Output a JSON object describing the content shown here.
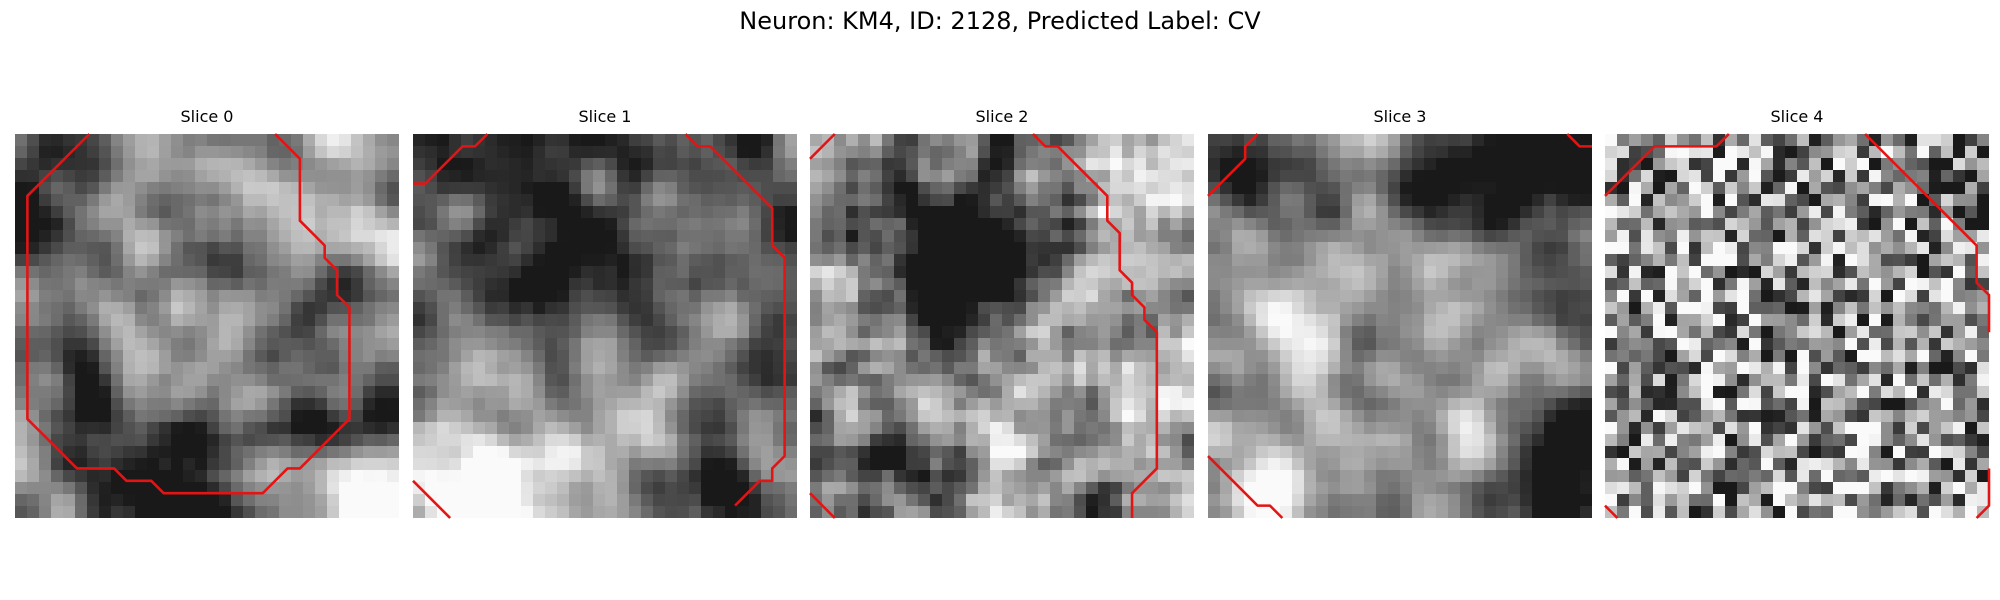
{
  "figure": {
    "title": "Neuron: KM4, ID: 2128, Predicted Label: CV",
    "contour_color": "#e41414",
    "colormap": "gray",
    "grid_size": 32
  },
  "slices": [
    {
      "title": "Slice 0",
      "texture": {
        "seed": 11,
        "contrast": 1.0,
        "smooth": 2,
        "blobs": [
          [
            2,
            2,
            3.5,
            -0.7
          ],
          [
            3,
            24,
            4,
            -0.3
          ],
          [
            14,
            28,
            5,
            -0.75
          ],
          [
            28,
            22,
            4,
            -0.55
          ],
          [
            29,
            31,
            3,
            0.8
          ],
          [
            31,
            1,
            3,
            0.4
          ],
          [
            18,
            17,
            7,
            0.22
          ],
          [
            22,
            12,
            4,
            -0.25
          ]
        ]
      },
      "contours": [
        [
          [
            6,
            0
          ],
          [
            1,
            5
          ],
          [
            1,
            23
          ],
          [
            3,
            25
          ],
          [
            5,
            27
          ],
          [
            8,
            27
          ],
          [
            9,
            28
          ],
          [
            11,
            28
          ],
          [
            12,
            29
          ],
          [
            20,
            29
          ],
          [
            22,
            27
          ],
          [
            23,
            27
          ],
          [
            25,
            25
          ],
          [
            27,
            23
          ],
          [
            27,
            14
          ],
          [
            26,
            13
          ],
          [
            26,
            11
          ],
          [
            25,
            10
          ],
          [
            25,
            9
          ],
          [
            24,
            8
          ],
          [
            23,
            7
          ],
          [
            23,
            2
          ],
          [
            22,
            1
          ],
          [
            21,
            0
          ]
        ]
      ]
    },
    {
      "title": "Slice 1",
      "texture": {
        "seed": 27,
        "contrast": 1.0,
        "smooth": 2,
        "blobs": [
          [
            16,
            6,
            12,
            -0.35
          ],
          [
            8,
            12,
            5,
            -0.35
          ],
          [
            20,
            12,
            5,
            -0.2
          ],
          [
            10,
            20,
            9,
            0.35
          ],
          [
            24,
            5,
            4,
            0.3
          ],
          [
            5,
            30,
            3,
            0.7
          ],
          [
            27,
            29,
            4,
            -0.5
          ]
        ]
      },
      "contours": [
        [
          [
            6,
            0
          ],
          [
            5,
            1
          ],
          [
            4,
            1
          ],
          [
            3,
            2
          ],
          [
            2,
            3
          ],
          [
            1,
            4
          ],
          [
            0,
            4
          ]
        ],
        [
          [
            22,
            0
          ],
          [
            23,
            1
          ],
          [
            24,
            1
          ],
          [
            28,
            5
          ],
          [
            29,
            6
          ],
          [
            29,
            9
          ],
          [
            30,
            10
          ],
          [
            30,
            26
          ],
          [
            29,
            27
          ],
          [
            29,
            28
          ],
          [
            28,
            28
          ],
          [
            27,
            29
          ],
          [
            26,
            30
          ]
        ],
        [
          [
            0,
            28
          ],
          [
            3,
            31
          ]
        ]
      ]
    },
    {
      "title": "Slice 2",
      "texture": {
        "seed": 41,
        "contrast": 1.0,
        "smooth": 1,
        "blobs": [
          [
            13,
            10,
            3,
            -0.95
          ],
          [
            12,
            11,
            5,
            -0.45
          ],
          [
            8,
            6,
            5,
            -0.2
          ],
          [
            16,
            20,
            8,
            0.2
          ],
          [
            27,
            2,
            3,
            0.5
          ],
          [
            6,
            27,
            4,
            -0.3
          ],
          [
            22,
            31,
            3,
            -0.4
          ]
        ]
      },
      "contours": [
        [
          [
            2,
            0
          ],
          [
            1,
            1
          ],
          [
            0,
            2
          ]
        ],
        [
          [
            18,
            0
          ],
          [
            19,
            1
          ],
          [
            20,
            1
          ],
          [
            21,
            2
          ],
          [
            22,
            3
          ],
          [
            23,
            4
          ],
          [
            24,
            5
          ],
          [
            24,
            7
          ],
          [
            25,
            8
          ],
          [
            25,
            11
          ],
          [
            26,
            12
          ],
          [
            26,
            13
          ],
          [
            27,
            14
          ],
          [
            27,
            15
          ],
          [
            28,
            16
          ],
          [
            28,
            27
          ],
          [
            27,
            28
          ],
          [
            26,
            29
          ],
          [
            26,
            31
          ]
        ],
        [
          [
            0,
            29
          ],
          [
            2,
            31
          ]
        ]
      ]
    },
    {
      "title": "Slice 3",
      "texture": {
        "seed": 53,
        "contrast": 0.9,
        "smooth": 2,
        "blobs": [
          [
            25,
            1,
            5,
            -0.7
          ],
          [
            20,
            2,
            3,
            -0.4
          ],
          [
            2,
            2,
            3,
            -0.45
          ],
          [
            30,
            28,
            4,
            -0.8
          ],
          [
            5,
            30,
            3,
            0.5
          ],
          [
            16,
            14,
            9,
            0.2
          ],
          [
            30,
            10,
            3,
            -0.25
          ]
        ]
      },
      "contours": [
        [
          [
            4,
            0
          ],
          [
            3,
            1
          ],
          [
            3,
            2
          ],
          [
            1,
            4
          ],
          [
            0,
            5
          ]
        ],
        [
          [
            31,
            1
          ],
          [
            30,
            1
          ],
          [
            29,
            0
          ]
        ],
        [
          [
            0,
            26
          ],
          [
            1,
            27
          ],
          [
            2,
            28
          ],
          [
            3,
            29
          ],
          [
            4,
            30
          ],
          [
            5,
            30
          ],
          [
            6,
            31
          ]
        ]
      ]
    },
    {
      "title": "Slice 4",
      "texture": {
        "seed": 67,
        "contrast": 1.15,
        "smooth": 0,
        "blobs": [
          [
            16,
            16,
            14,
            0.05
          ],
          [
            30,
            4,
            3,
            -0.2
          ]
        ]
      },
      "contours": [
        [
          [
            10,
            0
          ],
          [
            9,
            1
          ],
          [
            4,
            1
          ],
          [
            0,
            5
          ]
        ],
        [
          [
            21,
            0
          ],
          [
            28,
            7
          ],
          [
            29,
            8
          ],
          [
            30,
            9
          ],
          [
            30,
            12
          ],
          [
            31,
            13
          ],
          [
            31,
            16
          ]
        ],
        [
          [
            0,
            30
          ],
          [
            1,
            31
          ]
        ],
        [
          [
            31,
            27
          ],
          [
            31,
            30
          ],
          [
            30,
            31
          ]
        ]
      ]
    }
  ]
}
